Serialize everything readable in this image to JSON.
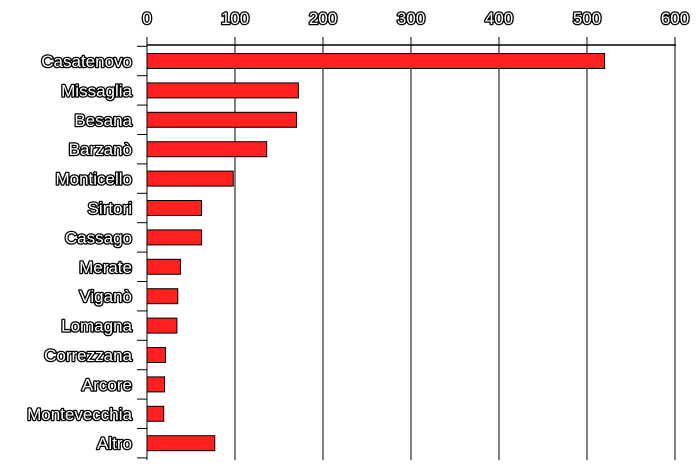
{
  "chart_data": {
    "type": "bar",
    "orientation": "horizontal",
    "categories": [
      "Casatenovo",
      "Missaglia",
      "Besana",
      "Barzanò",
      "Monticello",
      "Sirtori",
      "Cassago",
      "Merate",
      "Viganò",
      "Lomagna",
      "Correzzana",
      "Arcore",
      "Montevecchia",
      "Altro"
    ],
    "values": [
      520,
      172,
      170,
      136,
      98,
      62,
      62,
      38,
      35,
      34,
      21,
      20,
      19,
      77
    ],
    "xlim": [
      0,
      600
    ],
    "x_ticks": [
      "0",
      "100",
      "200",
      "300",
      "400",
      "500",
      "600"
    ],
    "axis_position": "top",
    "grid": true,
    "legend": "none",
    "title": "",
    "xlabel": "",
    "ylabel": "",
    "bar_color": "#ff2020",
    "bar_edge_color": "#000000",
    "text_fill_color": "#ffffff",
    "text_outline_color": "#000000"
  }
}
